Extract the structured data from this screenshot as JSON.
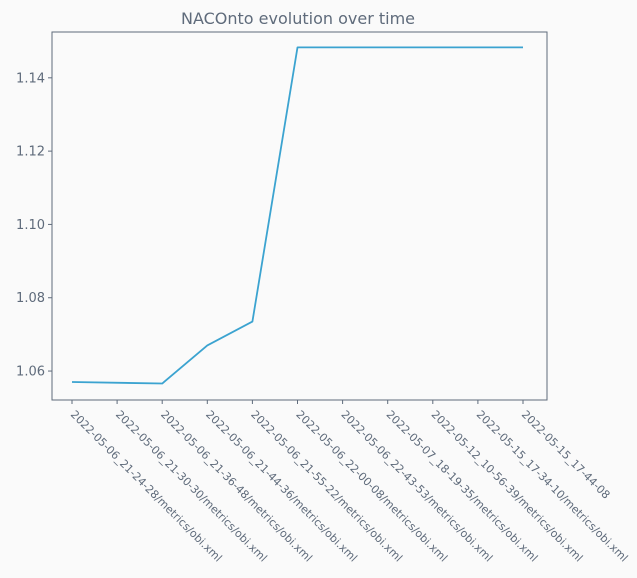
{
  "chart_data": {
    "type": "line",
    "title": "NACOnto evolution over time",
    "xlabel": "",
    "ylabel": "",
    "categories": [
      "2022-05-06_21-24-28/metrics/obi.xml",
      "2022-05-06_21-30-30/metrics/obi.xml",
      "2022-05-06_21-36-48/metrics/obi.xml",
      "2022-05-06_21-44-36/metrics/obi.xml",
      "2022-05-06_21-55-22/metrics/obi.xml",
      "2022-05-06_22-00-08/metrics/obi.xml",
      "2022-05-06_22-43-53/metrics/obi.xml",
      "2022-05-07_18-19-35/metrics/obi.xml",
      "2022-05-12_10-56-39/metrics/obi.xml",
      "2022-05-15_17-34-10/metrics/obi.xml",
      "2022-05-15_17-44-08"
    ],
    "series": [
      {
        "values": [
          1.057,
          null,
          1.0566,
          1.067,
          1.0735,
          1.1483,
          null,
          null,
          null,
          null,
          1.1483
        ]
      }
    ],
    "yticks": [
      1.06,
      1.08,
      1.1,
      1.12,
      1.14
    ],
    "ytick_labels": [
      "1.06",
      "1.08",
      "1.10",
      "1.12",
      "1.14"
    ],
    "ylim": [
      1.0521,
      1.1525
    ],
    "grid": false,
    "line_color": "#3ba3d0",
    "axis_color": "#5f6b7b"
  }
}
